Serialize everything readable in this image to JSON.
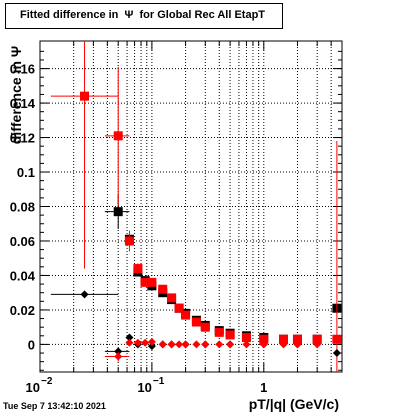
{
  "chart_data": {
    "type": "scatter",
    "title": "Fitted difference in  Ψ  for Global Rec All EtapT",
    "xlabel": "pT/|q| (GeV/c)",
    "ylabel": "difference in  Ψ",
    "xscale": "log",
    "xlim": [
      0.01,
      5.0
    ],
    "ylim": [
      -0.016,
      0.176
    ],
    "grid": true,
    "x_ticks": [
      {
        "value": 0.01,
        "label": "10",
        "exp": "−2"
      },
      {
        "value": 0.1,
        "label": "10",
        "exp": "−1"
      },
      {
        "value": 1,
        "label": "1",
        "exp": ""
      }
    ],
    "y_ticks": [
      {
        "value": 0,
        "label": "0"
      },
      {
        "value": 0.02,
        "label": "0.02"
      },
      {
        "value": 0.04,
        "label": "0.04"
      },
      {
        "value": 0.06,
        "label": "0.06"
      },
      {
        "value": 0.08,
        "label": "0.08"
      },
      {
        "value": 0.1,
        "label": "0.1"
      },
      {
        "value": 0.12,
        "label": "0.12"
      },
      {
        "value": 0.14,
        "label": "0.14"
      },
      {
        "value": 0.16,
        "label": "0.16"
      }
    ],
    "series": [
      {
        "marker": "square",
        "color": "#000000",
        "points": [
          [
            0.05,
            0.077,
            0.01
          ],
          [
            0.063,
            0.061,
            0.003
          ],
          [
            0.075,
            0.042,
            0.002
          ],
          [
            0.087,
            0.037,
            0.0015
          ],
          [
            0.1,
            0.034,
            0.001
          ],
          [
            0.125,
            0.03,
            0.001
          ],
          [
            0.15,
            0.026,
            0.001
          ],
          [
            0.175,
            0.021,
            0.001
          ],
          [
            0.2,
            0.018,
            0.001
          ],
          [
            0.25,
            0.014,
            0.0008
          ],
          [
            0.3,
            0.011,
            0.0007
          ],
          [
            0.4,
            0.008,
            0.0006
          ],
          [
            0.5,
            0.0065,
            0.0005
          ],
          [
            0.7,
            0.005,
            0.0005
          ],
          [
            1.0,
            0.004,
            0.0005
          ],
          [
            1.5,
            0.003,
            0.0005
          ],
          [
            2.0,
            0.003,
            0.0005
          ],
          [
            3.0,
            0.003,
            0.0005
          ],
          [
            4.5,
            0.021,
            0.0
          ]
        ]
      },
      {
        "marker": "square",
        "color": "#ff0000",
        "points": [
          [
            0.025,
            0.144,
            0.1
          ],
          [
            0.05,
            0.121,
            0.04
          ],
          [
            0.063,
            0.06,
            0.006
          ],
          [
            0.075,
            0.044,
            0.003
          ],
          [
            0.087,
            0.036,
            0.002
          ],
          [
            0.1,
            0.036,
            0.001
          ],
          [
            0.125,
            0.032,
            0.001
          ],
          [
            0.15,
            0.027,
            0.001
          ],
          [
            0.175,
            0.021,
            0.001
          ],
          [
            0.2,
            0.017,
            0.0008
          ],
          [
            0.25,
            0.013,
            0.0008
          ],
          [
            0.3,
            0.01,
            0.0007
          ],
          [
            0.4,
            0.007,
            0.0006
          ],
          [
            0.5,
            0.0055,
            0.0005
          ],
          [
            0.7,
            0.004,
            0.0005
          ],
          [
            1.0,
            0.003,
            0.0005
          ],
          [
            1.5,
            0.003,
            0.0005
          ],
          [
            2.0,
            0.003,
            0.0005
          ],
          [
            3.0,
            0.003,
            0.0005
          ],
          [
            4.5,
            0.003,
            0.115
          ]
        ]
      },
      {
        "marker": "diamond",
        "color": "#000000",
        "points": [
          [
            0.025,
            0.029,
            0.0
          ],
          [
            0.05,
            -0.004,
            0.002
          ],
          [
            0.063,
            0.004,
            0.0015
          ],
          [
            0.075,
            0.0,
            0.001
          ],
          [
            0.1,
            -0.001,
            0.001
          ],
          [
            0.125,
            0.0,
            0.0008
          ],
          [
            0.15,
            0.0,
            0.0008
          ],
          [
            0.2,
            0.0,
            0.0006
          ],
          [
            0.3,
            0.0,
            0.0005
          ],
          [
            0.5,
            0.0,
            0.0005
          ],
          [
            1.0,
            0.0,
            0.0005
          ],
          [
            2.0,
            0.0,
            0.0005
          ],
          [
            4.5,
            -0.005,
            0.0
          ]
        ]
      },
      {
        "marker": "diamond",
        "color": "#ff0000",
        "points": [
          [
            0.05,
            -0.007,
            0.003
          ],
          [
            0.063,
            0.001,
            0.0015
          ],
          [
            0.075,
            0.001,
            0.001
          ],
          [
            0.087,
            0.001,
            0.001
          ],
          [
            0.1,
            0.0015,
            0.0008
          ],
          [
            0.125,
            0.0,
            0.0008
          ],
          [
            0.15,
            0.0,
            0.0008
          ],
          [
            0.175,
            0.0,
            0.0006
          ],
          [
            0.2,
            0.0,
            0.0006
          ],
          [
            0.25,
            0.0,
            0.0006
          ],
          [
            0.3,
            0.0,
            0.0005
          ],
          [
            0.4,
            0.0,
            0.0005
          ],
          [
            0.5,
            0.0,
            0.0005
          ],
          [
            0.7,
            0.0,
            0.0005
          ],
          [
            1.0,
            0.0,
            0.0005
          ],
          [
            1.5,
            0.0,
            0.0005
          ],
          [
            2.0,
            0.0,
            0.0005
          ],
          [
            3.0,
            0.0,
            0.0005
          ],
          [
            4.5,
            0.003,
            0.0
          ]
        ]
      }
    ]
  },
  "timestamp": "Tue Sep  7 13:42:10 2021"
}
